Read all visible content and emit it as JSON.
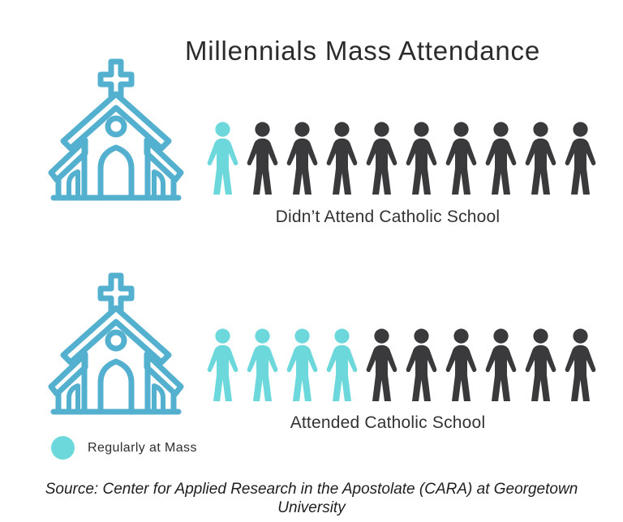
{
  "title": "Millennials Mass Attendance",
  "legend": {
    "label": "Regularly at Mass",
    "symbol": "teal-circle"
  },
  "source": "Source: Center for Applied Research in the Apostolate (CARA) at Georgetown University",
  "colors": {
    "highlight": "#6CD8DC",
    "muted": "#3A3A3C",
    "church": "#54B0CF",
    "text": "#2B2B2B"
  },
  "icons": {
    "church": "church-icon",
    "person": "person-icon"
  },
  "chart_data": {
    "type": "pictogram",
    "title": "Millennials Mass Attendance",
    "unit_per_icon": "1 person icon = 1 out of 10 millennials",
    "highlight_meaning": "Regularly at Mass",
    "legend_position": "bottom-left",
    "rows": [
      {
        "label": "Didn’t Attend Catholic School",
        "highlighted": 1,
        "total": 10
      },
      {
        "label": "Attended Catholic School",
        "highlighted": 4,
        "total": 10
      }
    ]
  }
}
